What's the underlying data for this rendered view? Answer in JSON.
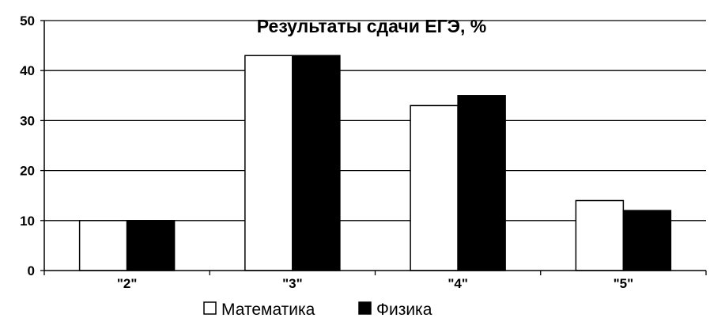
{
  "chart_data": {
    "type": "bar",
    "title": "Результаты сдачи ЕГЭ, %",
    "xlabel": "",
    "ylabel": "",
    "categories": [
      "\"2\"",
      "\"3\"",
      "\"4\"",
      "\"5\""
    ],
    "series": [
      {
        "name": "Математика",
        "values": [
          10,
          43,
          33,
          14
        ],
        "color": "#ffffff"
      },
      {
        "name": "Физика",
        "values": [
          10,
          43,
          35,
          12
        ],
        "color": "#000000"
      }
    ],
    "ylim": [
      0,
      50
    ],
    "yticks": [
      0,
      10,
      20,
      30,
      40,
      50
    ],
    "grid": true,
    "legend": "bottom"
  }
}
